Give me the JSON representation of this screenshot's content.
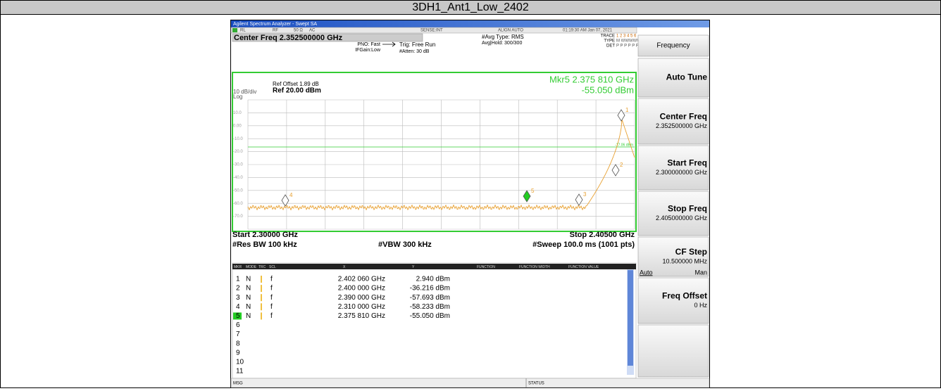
{
  "header": {
    "title": "3DH1_Ant1_Low_2402"
  },
  "analyzer": {
    "title_bar": "Agilent Spectrum Analyzer - Swept SA",
    "status": [
      "RL",
      "RF",
      "50 Ω",
      "AC",
      "SENSE:INT",
      "ALIGN AUTO",
      "01:19:30 AM Jan 07, 2021"
    ],
    "trace_info": {
      "trace": "TRACE",
      "trace_nums": "1 2 3 4 5 6",
      "type": "TYPE",
      "type_value": "M WWWWW",
      "det": "DET",
      "det_value": "P P P P P P"
    },
    "center_freq": "Center Freq 2.352500000 GHz",
    "pno": "PNO: Fast",
    "ifgain": "IFGain:Low",
    "trig": "Trig: Free Run",
    "atten": "#Atten: 30 dB",
    "avg_type": "#Avg Type: RMS",
    "avg_hold": "Avg|Hold: 300/300"
  },
  "plot": {
    "ref_offset": "Ref Offset 1.89 dB",
    "ref_level": "Ref 20.00 dBm",
    "scale": "10 dB/div",
    "log": "Log",
    "marker_readout": "Mkr5 2.375 810 GHz",
    "marker_value": "-55.050 dBm",
    "y_labels": [
      "10.0",
      "0.00",
      "-10.0",
      "-20.0",
      "-30.0",
      "-40.0",
      "-50.0",
      "-60.0",
      "-70.0"
    ],
    "display_line": "-17.06 dBm",
    "marker_labels": [
      "1",
      "2",
      "3",
      "4",
      "5"
    ]
  },
  "footer": {
    "start": "Start 2.30000 GHz",
    "stop": "Stop 2.40500 GHz",
    "rbw": "#Res BW 100 kHz",
    "vbw": "#VBW 300 kHz",
    "sweep": "#Sweep  100.0 ms (1001 pts)"
  },
  "table": {
    "headers": [
      "MKR",
      "MODE",
      "TRC",
      "SCL",
      "X",
      "Y",
      "FUNCTION",
      "FUNCTION WIDTH",
      "FUNCTION VALUE"
    ],
    "rows": [
      [
        "1",
        "N",
        "f",
        "2.402 060 GHz",
        "2.940 dBm"
      ],
      [
        "2",
        "N",
        "f",
        "2.400 000 GHz",
        "-36.216 dBm"
      ],
      [
        "3",
        "N",
        "f",
        "2.390 000 GHz",
        "-57.693 dBm"
      ],
      [
        "4",
        "N",
        "f",
        "2.310 000 GHz",
        "-58.233 dBm"
      ],
      [
        "5",
        "N",
        "f",
        "2.375 810 GHz",
        "-55.050 dBm"
      ],
      [
        "6"
      ],
      [
        "7"
      ],
      [
        "8"
      ],
      [
        "9"
      ],
      [
        "10"
      ],
      [
        "11"
      ]
    ]
  },
  "softkeys": [
    {
      "label": "Frequency"
    },
    {
      "label": "Auto Tune"
    },
    {
      "label": "Center Freq",
      "value": "2.352500000 GHz"
    },
    {
      "label": "Start Freq",
      "value": "2.300000000 GHz"
    },
    {
      "label": "Stop Freq",
      "value": "2.405000000 GHz"
    },
    {
      "label": "CF Step",
      "value": "10.500000 MHz",
      "options": [
        "Auto",
        "Man"
      ]
    },
    {
      "label": "Freq Offset",
      "value": "0 Hz"
    }
  ],
  "statusbar": {
    "msg": "MSG",
    "status": "STATUS"
  }
}
